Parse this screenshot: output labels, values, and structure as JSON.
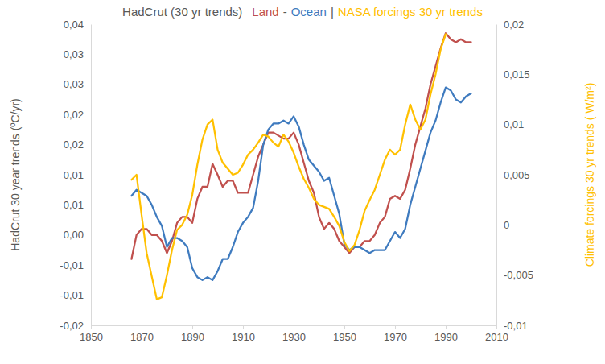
{
  "chart_data": {
    "type": "line",
    "title": "HadCrut (30 yr trends)",
    "annotations": [
      "-",
      "|"
    ],
    "legend": "top",
    "grid": false,
    "y_label": "HadCrut 30 year trends (ºC/yr)",
    "y2_label": "Climate forcings 30 yr trends ( W/m²)",
    "x": [
      1866,
      1868,
      1870,
      1872,
      1874,
      1876,
      1878,
      1880,
      1882,
      1884,
      1886,
      1888,
      1890,
      1892,
      1894,
      1896,
      1898,
      1900,
      1902,
      1904,
      1906,
      1908,
      1910,
      1912,
      1914,
      1916,
      1918,
      1920,
      1922,
      1924,
      1926,
      1928,
      1930,
      1932,
      1934,
      1936,
      1938,
      1940,
      1942,
      1944,
      1946,
      1948,
      1950,
      1952,
      1954,
      1956,
      1958,
      1960,
      1962,
      1964,
      1966,
      1968,
      1970,
      1972,
      1974,
      1976,
      1978,
      1980,
      1982,
      1984,
      1986,
      1988,
      1990,
      1992,
      1994,
      1996,
      1998,
      2000
    ],
    "xlim": [
      1850,
      2010
    ],
    "xticks": [
      1850,
      1870,
      1890,
      1910,
      1930,
      1950,
      1970,
      1990,
      2010
    ],
    "ylim": [
      -0.015,
      0.035
    ],
    "yticks": [
      {
        "value": 0.035,
        "label": "0,04"
      },
      {
        "value": 0.03,
        "label": "0,03"
      },
      {
        "value": 0.025,
        "label": "0,03"
      },
      {
        "value": 0.02,
        "label": "0,02"
      },
      {
        "value": 0.015,
        "label": "0,02"
      },
      {
        "value": 0.01,
        "label": "0,01"
      },
      {
        "value": 0.005,
        "label": "0,01"
      },
      {
        "value": 0,
        "label": "0,00"
      },
      {
        "value": -0.005,
        "label": "-0,01"
      },
      {
        "value": -0.01,
        "label": "-0,01"
      },
      {
        "value": -0.015,
        "label": "-0,02"
      }
    ],
    "y2lim": [
      -0.01,
      0.02
    ],
    "y2ticks": [
      {
        "value": 0.02,
        "label": "0,02"
      },
      {
        "value": 0.015,
        "label": "0,015"
      },
      {
        "value": 0.01,
        "label": "0,01"
      },
      {
        "value": 0.005,
        "label": "0,005"
      },
      0,
      {
        "value": -0.005,
        "label": "-0,005"
      },
      {
        "value": -0.01,
        "label": "-0,01"
      }
    ],
    "series": [
      {
        "name": "Land",
        "color": "#c0504d",
        "values": [
          -0.004,
          0,
          0.001,
          0.001,
          0,
          0,
          -0.001,
          -0.003,
          -0.001,
          0.002,
          0.003,
          0.003,
          0.002,
          0.006,
          0.008,
          0.008,
          0.0118,
          0.01,
          0.008,
          0.009,
          0.009,
          0.007,
          0.007,
          0.007,
          0.01,
          0.013,
          0.015,
          0.017,
          0.017,
          0.0165,
          0.016,
          0.016,
          0.017,
          0.015,
          0.012,
          0.009,
          0.007,
          0.003,
          0.001,
          0.002,
          0.001,
          -0.001,
          -0.002,
          -0.003,
          -0.002,
          -0.002,
          -0.001,
          -0.001,
          0,
          0.002,
          0.003,
          0.006,
          0.0065,
          0.006,
          0.0075,
          0.011,
          0.015,
          0.018,
          0.021,
          0.025,
          0.028,
          0.031,
          0.0335,
          0.0325,
          0.032,
          0.0325,
          0.032,
          0.032
        ]
      },
      {
        "name": "Ocean",
        "color": "#3f7bbf",
        "values": [
          0.0065,
          0.0075,
          0.007,
          0.0065,
          0.005,
          0.003,
          0.0015,
          -0.002,
          -0.0005,
          -0.0005,
          -0.001,
          -0.002,
          -0.0055,
          -0.007,
          -0.0075,
          -0.007,
          -0.0075,
          -0.006,
          -0.004,
          -0.004,
          -0.002,
          0.0005,
          0.002,
          0.003,
          0.0045,
          0.009,
          0.015,
          0.0175,
          0.0185,
          0.0185,
          0.019,
          0.0185,
          0.0197,
          0.018,
          0.015,
          0.0125,
          0.0115,
          0.0105,
          0.009,
          0.0095,
          0.0065,
          0.0035,
          -0.0015,
          -0.0025,
          -0.002,
          -0.002,
          -0.0025,
          -0.003,
          -0.0025,
          -0.0025,
          -0.0025,
          -0.001,
          0.0005,
          -0.0005,
          0.001,
          0.005,
          0.008,
          0.011,
          0.014,
          0.017,
          0.019,
          0.022,
          0.0245,
          0.024,
          0.0225,
          0.022,
          0.023,
          0.0235
        ]
      },
      {
        "name": "NASA forcings 30 yr trends",
        "color": "#ffc000",
        "axis": "y2",
        "values": [
          0.0045,
          0.005,
          0.001,
          -0.0028,
          -0.0051,
          -0.0074,
          -0.0072,
          -0.005,
          -0.0025,
          -0.0005,
          0,
          0.001,
          0.003,
          0.006,
          0.0085,
          0.01,
          0.0105,
          0.0075,
          0.0062,
          0.0056,
          0.005,
          0.0052,
          0.006,
          0.007,
          0.0075,
          0.0082,
          0.009,
          0.0088,
          0.0082,
          0.0078,
          0.009,
          0.0083,
          0.0072,
          0.0058,
          0.0046,
          0.0037,
          0.0026,
          0.002,
          0.0018,
          0.0016,
          0.0008,
          -0.0001,
          -0.0017,
          -0.0026,
          -0.002,
          -0.0005,
          0.0014,
          0.0025,
          0.0035,
          0.005,
          0.0065,
          0.0075,
          0.007,
          0.0075,
          0.01,
          0.012,
          0.0105,
          0.0095,
          0.0105,
          0.013,
          0.015,
          0.0175,
          0.019,
          null,
          null,
          null,
          null,
          null
        ]
      }
    ]
  }
}
